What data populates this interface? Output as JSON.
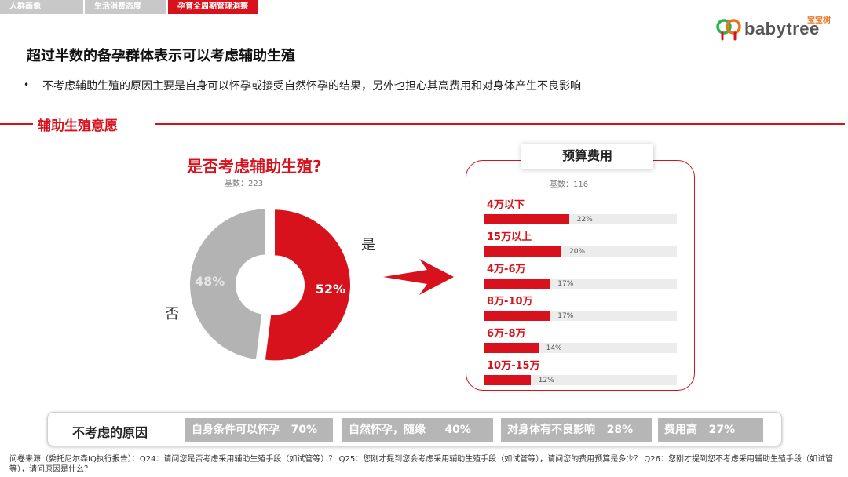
{
  "tabs": [
    "人群画像",
    "生活消费态度",
    "孕育全周期管理洞察"
  ],
  "brand": {
    "name": "babytree",
    "sub": "宝宝树"
  },
  "page_title": "超过半数的备孕群体表示可以考虑辅助生殖",
  "bullet": "不考虑辅助生殖的原因主要是自身可以怀孕或接受自然怀孕的结果，另外也担心其高费用和对身体产生不良影响",
  "section_title": "辅助生殖意愿",
  "colors": {
    "accent": "#d7121c",
    "gray": "#b6b6b6"
  },
  "chart_data": [
    {
      "type": "pie",
      "title": "是否考虑辅助生殖?",
      "base": "基数：223",
      "categories": [
        "是",
        "否"
      ],
      "values": [
        52,
        48
      ],
      "value_labels": [
        "52%",
        "48%"
      ],
      "colors": [
        "#d7121c",
        "#b3b3b3"
      ]
    },
    {
      "type": "bar",
      "title": "预算费用",
      "base": "基数：116",
      "categories": [
        "4万以下",
        "15万以上",
        "4万-6万",
        "8万-10万",
        "6万-8万",
        "10万-15万"
      ],
      "values": [
        22,
        20,
        17,
        17,
        14,
        12
      ],
      "value_labels": [
        "22%",
        "20%",
        "17%",
        "17%",
        "14%",
        "12%"
      ],
      "xlim": [
        0,
        50
      ]
    }
  ],
  "reasons": {
    "title": "不考虑的原因",
    "items": [
      {
        "label": "自身条件可以怀孕",
        "value": "70%"
      },
      {
        "label": "自然怀孕，随缘",
        "value": "40%"
      },
      {
        "label": "对身体有不良影响",
        "value": "28%"
      },
      {
        "label": "费用高",
        "value": "27%"
      }
    ]
  },
  "footnote": "问卷来源（委托尼尔森IQ执行报告）：Q24：请问您是否考虑采用辅助生殖手段（如试管等）？ Q25：您刚才提到您会考虑采用辅助生殖手段（如试管等），请问您的费用预算是多少？ Q26：您刚才提到您不考虑采用辅助生殖手段（如试管等），请问原因是什么？"
}
